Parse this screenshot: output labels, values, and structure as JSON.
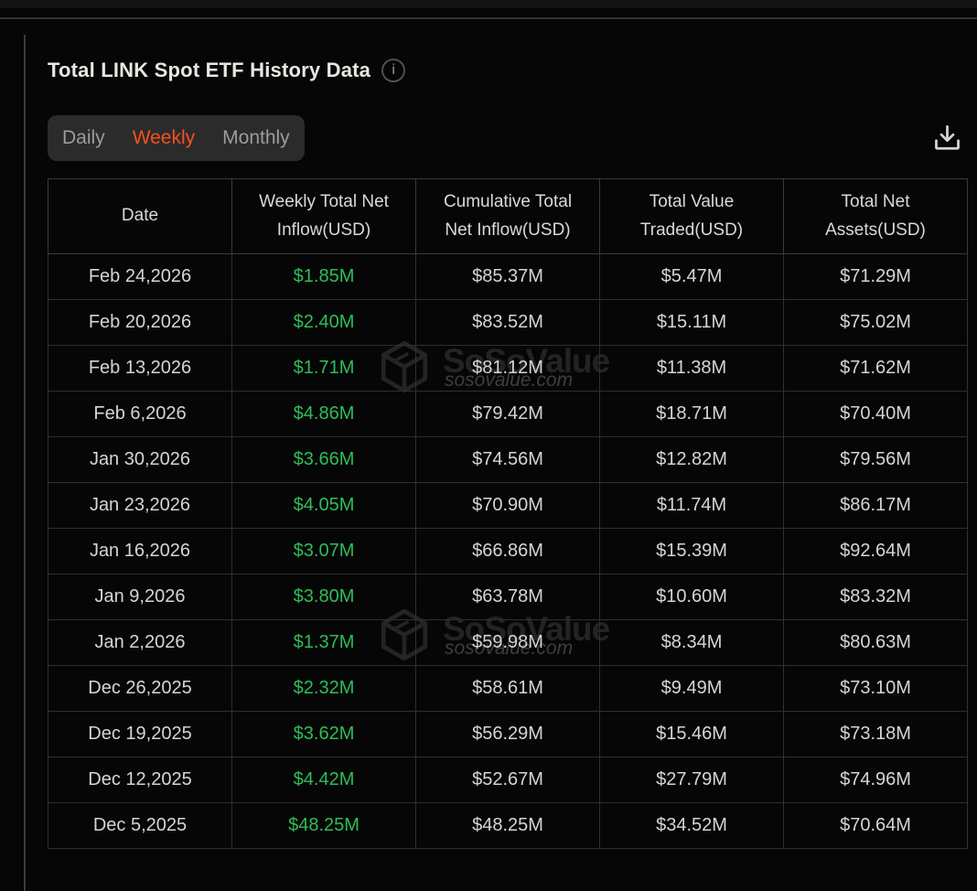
{
  "colors": {
    "accent": "#FA4F21",
    "positive": "#2EBD59"
  },
  "header": {
    "title": "Total LINK Spot ETF History Data"
  },
  "icons": {
    "info": "info-icon",
    "download": "download-icon",
    "logo": "sosovalue-cube-icon"
  },
  "tabs": {
    "items": [
      "Daily",
      "Weekly",
      "Monthly"
    ],
    "active": "Weekly"
  },
  "watermark": {
    "brand": "SoSoValue",
    "domain": "sosovalue.com"
  },
  "table": {
    "columns": [
      "Date",
      "Weekly Total Net Inflow(USD)",
      "Cumulative Total Net Inflow(USD)",
      "Total Value Traded(USD)",
      "Total Net Assets(USD)"
    ],
    "rows": [
      [
        "Feb 24,2026",
        "$1.85M",
        "$85.37M",
        "$5.47M",
        "$71.29M"
      ],
      [
        "Feb 20,2026",
        "$2.40M",
        "$83.52M",
        "$15.11M",
        "$75.02M"
      ],
      [
        "Feb 13,2026",
        "$1.71M",
        "$81.12M",
        "$11.38M",
        "$71.62M"
      ],
      [
        "Feb 6,2026",
        "$4.86M",
        "$79.42M",
        "$18.71M",
        "$70.40M"
      ],
      [
        "Jan 30,2026",
        "$3.66M",
        "$74.56M",
        "$12.82M",
        "$79.56M"
      ],
      [
        "Jan 23,2026",
        "$4.05M",
        "$70.90M",
        "$11.74M",
        "$86.17M"
      ],
      [
        "Jan 16,2026",
        "$3.07M",
        "$66.86M",
        "$15.39M",
        "$92.64M"
      ],
      [
        "Jan 9,2026",
        "$3.80M",
        "$63.78M",
        "$10.60M",
        "$83.32M"
      ],
      [
        "Jan 2,2026",
        "$1.37M",
        "$59.98M",
        "$8.34M",
        "$80.63M"
      ],
      [
        "Dec 26,2025",
        "$2.32M",
        "$58.61M",
        "$9.49M",
        "$73.10M"
      ],
      [
        "Dec 19,2025",
        "$3.62M",
        "$56.29M",
        "$15.46M",
        "$73.18M"
      ],
      [
        "Dec 12,2025",
        "$4.42M",
        "$52.67M",
        "$27.79M",
        "$74.96M"
      ],
      [
        "Dec 5,2025",
        "$48.25M",
        "$48.25M",
        "$34.52M",
        "$70.64M"
      ]
    ],
    "cell_names": [
      "cell-date",
      "cell-weekly-net-inflow",
      "cell-cumulative-net-inflow",
      "cell-value-traded",
      "cell-net-assets"
    ]
  }
}
